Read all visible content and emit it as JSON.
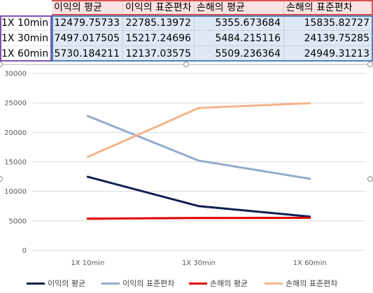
{
  "sheet": {
    "headers": [
      "이익의 평균",
      "이익의 표준편차",
      "손해의 평균",
      "손해의 표준편차"
    ],
    "rows": [
      {
        "label": "1X 10min",
        "values": [
          "12479.75733",
          "22785.13972",
          "5355.673684",
          "15835.82727"
        ]
      },
      {
        "label": "1X 30min",
        "values": [
          "7497.017505",
          "15217.24696",
          "5484.215116",
          "24139.75285"
        ]
      },
      {
        "label": "1X 60min",
        "values": [
          "5730.184211",
          "12137.03575",
          "5509.236364",
          "24949.31213"
        ]
      }
    ]
  },
  "chart_data": {
    "type": "line",
    "categories": [
      "1X 10min",
      "1X 30min",
      "1X 60min"
    ],
    "series": [
      {
        "name": "이익의 평균",
        "color": "#0d1f4f",
        "values": [
          12479.75733,
          7497.017505,
          5730.184211
        ]
      },
      {
        "name": "이익의 표준편차",
        "color": "#94abcd",
        "values": [
          22785.13972,
          15217.24696,
          12137.03575
        ]
      },
      {
        "name": "손해의 평균",
        "color": "#e00000",
        "values": [
          5355.673684,
          5484.215116,
          5509.236364
        ]
      },
      {
        "name": "손해의 표준편차",
        "color": "#f4b48a",
        "values": [
          15835.82727,
          24139.75285,
          24949.31213
        ]
      }
    ],
    "yticks": [
      "30000",
      "25000",
      "20000",
      "15000",
      "10000",
      "5000",
      "0"
    ],
    "ylim": [
      0,
      30000
    ],
    "grid": true,
    "legend": "bottom"
  }
}
